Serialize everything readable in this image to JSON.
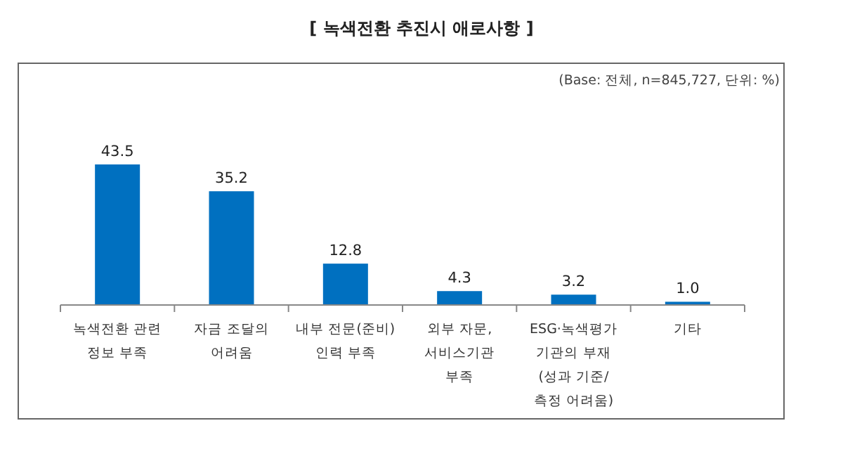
{
  "chart_data": {
    "type": "bar",
    "title": "[ 녹색전환 추진시 애로사항 ]",
    "subtitle": "(Base: 전체, n=845,727, 단위: %)",
    "categories": [
      "녹색전환 관련\n정보 부족",
      "자금 조달의\n어려움",
      "내부 전문(준비)\n인력 부족",
      "외부 자문,\n서비스기관\n부족",
      "ESG·녹색평가\n기관의 부재\n(성과 기준/\n측정 어려움)",
      "기타"
    ],
    "values": [
      43.5,
      35.2,
      12.8,
      4.3,
      3.2,
      1.0
    ],
    "value_labels": [
      "43.5",
      "35.2",
      "12.8",
      "4.3",
      "3.2",
      "1.0"
    ],
    "color": "#0070c0"
  }
}
